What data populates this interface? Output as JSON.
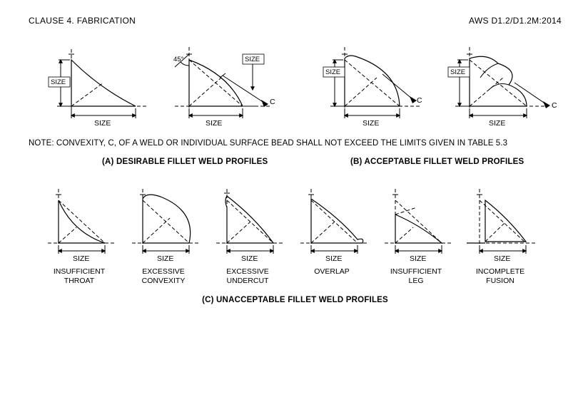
{
  "header": {
    "left": "CLAUSE 4. FABRICATION",
    "right": "AWS D1.2/D1.2M:2014"
  },
  "note": "NOTE: CONVEXITY, C, OF A WELD OR INDIVIDUAL SURFACE BEAD SHALL NOT EXCEED THE LIMITS GIVEN IN TABLE 5.3",
  "sections": {
    "a": "(A) DESIRABLE FILLET WELD PROFILES",
    "b": "(B) ACCEPTABLE FILLET WELD PROFILES",
    "c": "(C) UNACCEPTABLE FILLET WELD PROFILES"
  },
  "dim": {
    "size": "SIZE",
    "angle45": "45°",
    "c": "C"
  },
  "defects": {
    "d1": "INSUFFICIENT\nTHROAT",
    "d2": "EXCESSIVE\nCONVEXITY",
    "d3": "EXCESSIVE\nUNDERCUT",
    "d4": "OVERLAP",
    "d5": "INSUFFICIENT\nLEG",
    "d6": "INCOMPLETE\nFUSION"
  },
  "style": {
    "fill_color": "#a0a0a0",
    "stroke_color": "#000000",
    "background": "#ffffff",
    "dash_pattern": "5 3",
    "font_family": "Arial",
    "label_fontsize": 10.5,
    "header_fontsize": 12,
    "section_fontsize": 11.5
  }
}
